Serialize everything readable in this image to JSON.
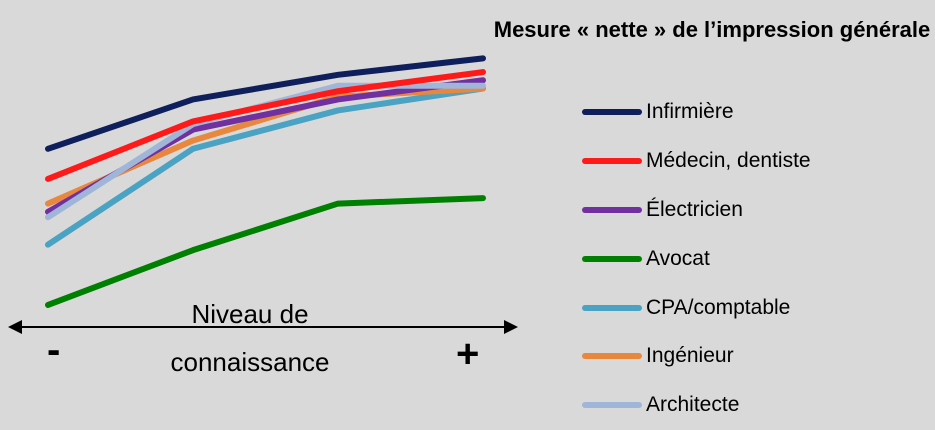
{
  "chart_data": {
    "type": "line",
    "title": "Mesure « nette » de l’impression générale",
    "xlabel": "Niveau de connaissance",
    "x": [
      1,
      2,
      3,
      4
    ],
    "x_axis_ends": {
      "min": "-",
      "max": "+"
    },
    "ylim": [
      0,
      100
    ],
    "grid": false,
    "legend_position": "right",
    "series": [
      {
        "name": "Infirmière",
        "color": "#0f1f5c",
        "values": [
          53,
          71,
          80,
          86
        ]
      },
      {
        "name": "Médecin, dentiste",
        "color": "#ff1a1a",
        "values": [
          42,
          63,
          74,
          81
        ]
      },
      {
        "name": "Électricien",
        "color": "#7030a0",
        "values": [
          30,
          60,
          71,
          78
        ]
      },
      {
        "name": "Avocat",
        "color": "#008000",
        "values": [
          -4,
          16,
          33,
          35
        ]
      },
      {
        "name": "CPA/comptable",
        "color": "#4aa3c2",
        "values": [
          18,
          53,
          67,
          75
        ]
      },
      {
        "name": "Ingénieur",
        "color": "#e8873e",
        "values": [
          33,
          56,
          72,
          75
        ]
      },
      {
        "name": "Architecte",
        "color": "#9fb6d9",
        "values": [
          28,
          62,
          76,
          76
        ]
      }
    ]
  }
}
